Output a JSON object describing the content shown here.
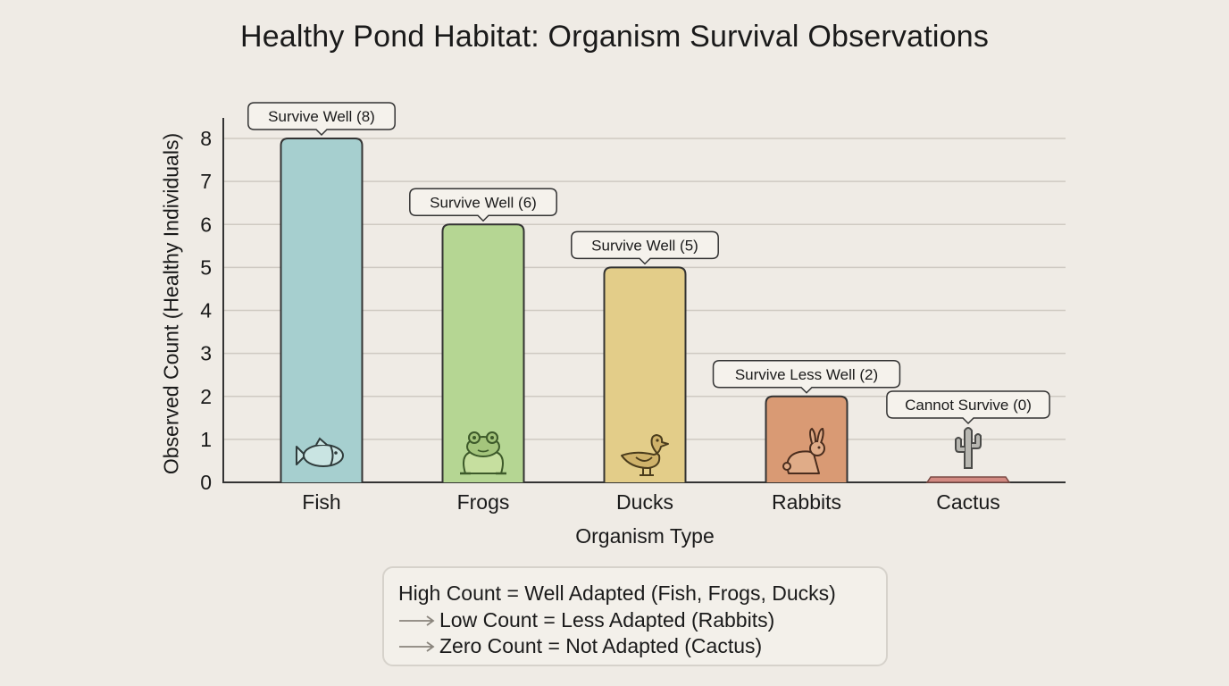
{
  "chart_data": {
    "type": "bar",
    "title": "Healthy Pond Habitat: Organism Survival Observations",
    "xlabel": "Organism Type",
    "ylabel": "Observed Count (Healthy Individuals)",
    "ylim": [
      0,
      8
    ],
    "yticks": [
      0,
      1,
      2,
      3,
      4,
      5,
      6,
      7,
      8
    ],
    "grid": true,
    "categories": [
      "Fish",
      "Frogs",
      "Ducks",
      "Rabbits",
      "Cactus"
    ],
    "values": [
      8,
      6,
      5,
      2,
      0
    ],
    "annotations": [
      "Survive Well (8)",
      "Survive Well (6)",
      "Survive Well (5)",
      "Survive Less Well (2)",
      "Cannot Survive (0)"
    ],
    "colors": [
      "#a6cfcf",
      "#b5d693",
      "#e3cd89",
      "#d99a74",
      "#d38a82"
    ],
    "icons": [
      "fish-icon",
      "frog-icon",
      "duck-icon",
      "rabbit-icon",
      "cactus-icon"
    ],
    "legend": [
      "High Count = Well Adapted (Fish, Frogs, Ducks)",
      "Low Count = Less Adapted (Rabbits)",
      "Zero Count = Not Adapted (Cactus)"
    ],
    "legend_position": "bottom"
  }
}
